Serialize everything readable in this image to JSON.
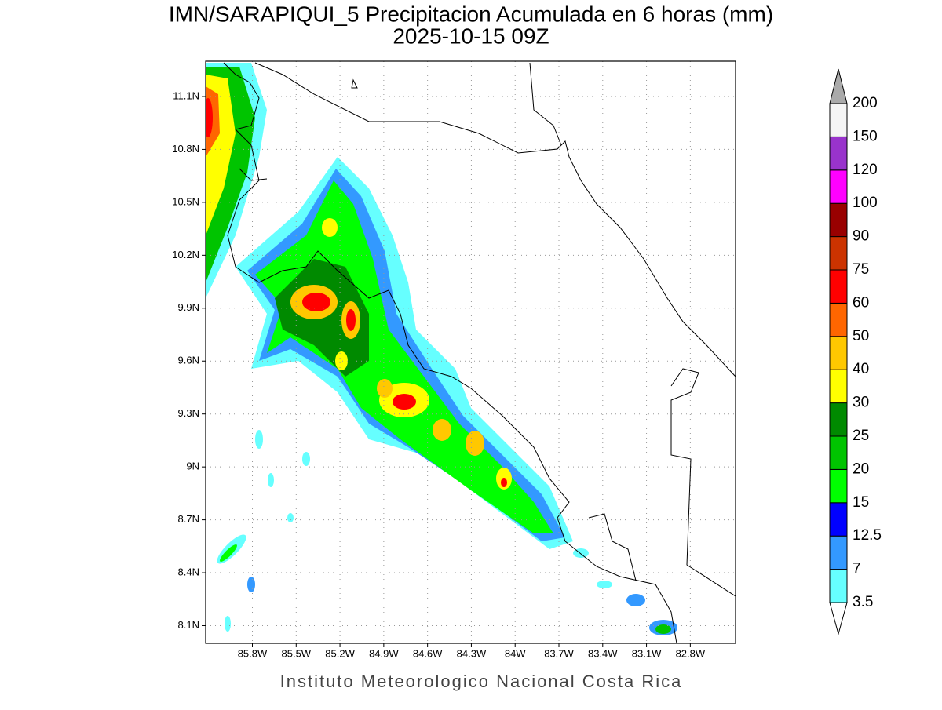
{
  "title": "IMN/SARAPIQUI_5 Precipitacion Acumulada en 6 horas (mm)",
  "subtitle": "2025-10-15 09Z",
  "footer": "Instituto Meteorologico Nacional Costa Rica",
  "map": {
    "xlim": [
      -86.12,
      -82.49
    ],
    "ylim": [
      8.0,
      11.3
    ],
    "grid": true,
    "xticks": [
      {
        "value": -85.8,
        "label": "85.8W"
      },
      {
        "value": -85.5,
        "label": "85.5W"
      },
      {
        "value": -85.2,
        "label": "85.2W"
      },
      {
        "value": -84.9,
        "label": "84.9W"
      },
      {
        "value": -84.6,
        "label": "84.6W"
      },
      {
        "value": -84.3,
        "label": "84.3W"
      },
      {
        "value": -84.0,
        "label": "84W"
      },
      {
        "value": -83.7,
        "label": "83.7W"
      },
      {
        "value": -83.4,
        "label": "83.4W"
      },
      {
        "value": -83.1,
        "label": "83.1W"
      },
      {
        "value": -82.8,
        "label": "82.8W"
      }
    ],
    "yticks": [
      {
        "value": 8.1,
        "label": "8.1N"
      },
      {
        "value": 8.4,
        "label": "8.4N"
      },
      {
        "value": 8.7,
        "label": "8.7N"
      },
      {
        "value": 9.0,
        "label": "9N"
      },
      {
        "value": 9.3,
        "label": "9.3N"
      },
      {
        "value": 9.6,
        "label": "9.6N"
      },
      {
        "value": 9.9,
        "label": "9.9N"
      },
      {
        "value": 10.2,
        "label": "10.2N"
      },
      {
        "value": 10.5,
        "label": "10.5N"
      },
      {
        "value": 10.8,
        "label": "10.8N"
      },
      {
        "value": 11.1,
        "label": "11.1N"
      }
    ]
  },
  "colorbar": {
    "levels": [
      3.5,
      7,
      12.5,
      15,
      20,
      25,
      30,
      40,
      50,
      60,
      75,
      90,
      100,
      120,
      150,
      200
    ],
    "colors": [
      "#ffffff",
      "#66ffff",
      "#3399ff",
      "#0000ff",
      "#00ff00",
      "#00c400",
      "#008a00",
      "#ffff00",
      "#ffc800",
      "#ff6600",
      "#ff0000",
      "#cc3300",
      "#990000",
      "#ff00ff",
      "#9933cc",
      "#f5f5f5",
      "#aaaaaa"
    ]
  }
}
